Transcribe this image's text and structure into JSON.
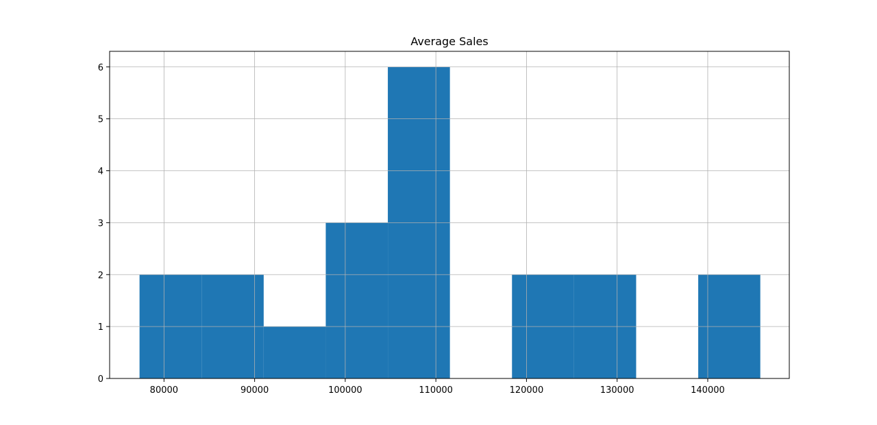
{
  "chart_data": {
    "type": "bar",
    "title": "Average Sales",
    "xlabel": "",
    "ylabel": "",
    "grid": true,
    "bar_color": "#1f77b4",
    "xlim": [
      74000,
      149000
    ],
    "ylim": [
      0,
      6.3
    ],
    "bins": [
      {
        "x0": 77300,
        "x1": 84150,
        "count": 2
      },
      {
        "x0": 84150,
        "x1": 91000,
        "count": 2
      },
      {
        "x0": 91000,
        "x1": 97850,
        "count": 1
      },
      {
        "x0": 97850,
        "x1": 104700,
        "count": 3
      },
      {
        "x0": 104700,
        "x1": 111550,
        "count": 6
      },
      {
        "x0": 111550,
        "x1": 118400,
        "count": 0
      },
      {
        "x0": 118400,
        "x1": 125250,
        "count": 2
      },
      {
        "x0": 125250,
        "x1": 132100,
        "count": 2
      },
      {
        "x0": 132100,
        "x1": 138950,
        "count": 0
      },
      {
        "x0": 138950,
        "x1": 145800,
        "count": 2
      }
    ],
    "x_ticks": [
      80000,
      90000,
      100000,
      110000,
      120000,
      130000,
      140000
    ],
    "x_tick_labels": [
      "80000",
      "90000",
      "100000",
      "110000",
      "120000",
      "130000",
      "140000"
    ],
    "y_ticks": [
      0,
      1,
      2,
      3,
      4,
      5,
      6
    ],
    "y_tick_labels": [
      "0",
      "1",
      "2",
      "3",
      "4",
      "5",
      "6"
    ]
  }
}
